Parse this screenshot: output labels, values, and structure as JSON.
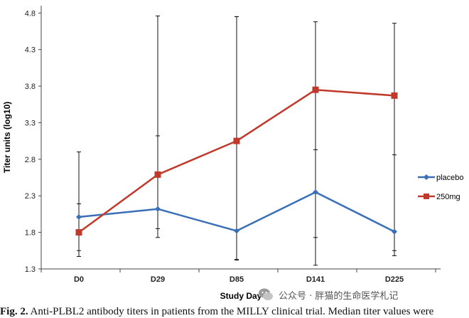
{
  "chart_data": {
    "type": "line",
    "title": "",
    "xlabel": "Study Day",
    "ylabel": "Titer units (log10)",
    "categories": [
      "D0",
      "D29",
      "D85",
      "D141",
      "D225"
    ],
    "ylim": [
      1.3,
      4.9
    ],
    "yticks": [
      "1.3",
      "1.8",
      "2.3",
      "2.8",
      "3.3",
      "3.8",
      "4.3",
      "4.8"
    ],
    "grid": false,
    "legend_position": "right",
    "series": [
      {
        "name": "placebo",
        "color": "#3a6fb5",
        "marker": "diamond",
        "values": [
          2.01,
          2.12,
          1.82,
          2.35,
          1.81
        ],
        "error_low": [
          1.55,
          1.85,
          1.43,
          1.73,
          1.55
        ],
        "error_high": [
          2.19,
          3.12,
          4.75,
          4.68,
          4.66
        ]
      },
      {
        "name": "250mg",
        "color": "#c0392b",
        "marker": "square",
        "values": [
          1.8,
          2.59,
          3.05,
          3.75,
          3.67
        ],
        "error_low": [
          1.47,
          1.73,
          1.42,
          1.35,
          1.48
        ],
        "error_high": [
          2.9,
          4.76,
          4.75,
          2.93,
          2.86
        ]
      }
    ]
  },
  "caption": {
    "label": "Fig. 2.",
    "text": " Anti-PLBL2 antibody titers in patients from the MILLY clinical trial. Median titer values were"
  },
  "watermark": {
    "text": "公众号 · 胖猫的生命医学札记",
    "icon": "wechat-icon"
  }
}
